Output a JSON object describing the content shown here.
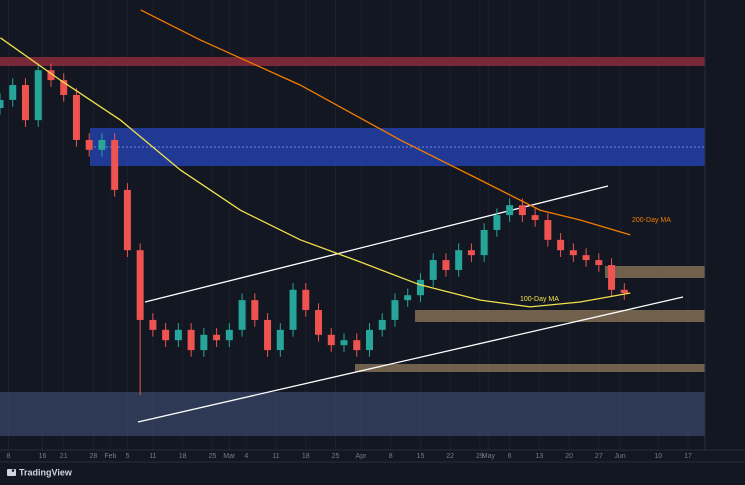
{
  "chart_data": {
    "type": "candlestick",
    "brand": "TradingView",
    "xlim": [
      5,
      171
    ],
    "ylim": [
      0,
      100
    ],
    "xticks": [
      {
        "value": 7,
        "label": "8"
      },
      {
        "value": 15,
        "label": "16"
      },
      {
        "value": 20,
        "label": "21"
      },
      {
        "value": 27,
        "label": "28"
      },
      {
        "value": 31,
        "label": "Feb"
      },
      {
        "value": 35,
        "label": "5"
      },
      {
        "value": 41,
        "label": "11"
      },
      {
        "value": 48,
        "label": "18"
      },
      {
        "value": 55,
        "label": "25"
      },
      {
        "value": 59,
        "label": "Mar"
      },
      {
        "value": 63,
        "label": "4"
      },
      {
        "value": 70,
        "label": "11"
      },
      {
        "value": 77,
        "label": "18"
      },
      {
        "value": 84,
        "label": "25"
      },
      {
        "value": 90,
        "label": "Apr"
      },
      {
        "value": 97,
        "label": "8"
      },
      {
        "value": 104,
        "label": "15"
      },
      {
        "value": 111,
        "label": "22"
      },
      {
        "value": 118,
        "label": "29"
      },
      {
        "value": 120,
        "label": "May"
      },
      {
        "value": 125,
        "label": "6"
      },
      {
        "value": 132,
        "label": "13"
      },
      {
        "value": 139,
        "label": "20"
      },
      {
        "value": 146,
        "label": "27"
      },
      {
        "value": 151,
        "label": "Jun"
      },
      {
        "value": 160,
        "label": "10"
      },
      {
        "value": 167,
        "label": "17"
      }
    ],
    "up_color": "#26a69a",
    "down_color": "#ef5350",
    "x": [
      5,
      8,
      11,
      14,
      17,
      20,
      23,
      26,
      29,
      32,
      35,
      38,
      41,
      44,
      47,
      50,
      53,
      56,
      59,
      62,
      65,
      68,
      71,
      74,
      77,
      80,
      83,
      86,
      89,
      92,
      95,
      98,
      101,
      104,
      107,
      110,
      113,
      116,
      119,
      122,
      125,
      128,
      131,
      134,
      137,
      140,
      143,
      146,
      149,
      152
    ],
    "open": [
      76.0,
      77.8,
      81.1,
      73.3,
      84.4,
      82.2,
      78.9,
      68.9,
      66.7,
      68.9,
      57.8,
      44.4,
      28.9,
      26.7,
      24.4,
      26.7,
      22.2,
      25.6,
      24.4,
      26.7,
      33.3,
      28.9,
      22.2,
      26.7,
      35.6,
      31.1,
      25.6,
      23.3,
      24.4,
      22.2,
      26.7,
      28.9,
      33.3,
      34.4,
      37.8,
      42.2,
      40.0,
      44.4,
      43.3,
      48.9,
      52.2,
      54.4,
      52.2,
      51.1,
      46.7,
      44.4,
      43.3,
      42.2,
      41.1,
      35.6
    ],
    "high": [
      79.3,
      82.6,
      82.6,
      85.9,
      85.9,
      83.7,
      80.4,
      70.4,
      70.4,
      70.4,
      59.3,
      45.9,
      30.4,
      28.2,
      28.2,
      28.2,
      27.1,
      27.1,
      28.2,
      34.8,
      34.8,
      30.4,
      28.2,
      37.1,
      37.1,
      32.6,
      27.1,
      25.9,
      25.9,
      28.2,
      30.4,
      34.8,
      35.9,
      39.3,
      43.7,
      43.7,
      45.9,
      45.9,
      50.4,
      53.7,
      55.9,
      55.9,
      53.7,
      52.6,
      48.2,
      45.9,
      44.8,
      43.7,
      42.6,
      37.1
    ],
    "low": [
      74.5,
      76.3,
      71.8,
      71.8,
      80.7,
      77.4,
      67.4,
      65.2,
      65.2,
      56.3,
      42.9,
      12.2,
      25.2,
      22.9,
      22.9,
      20.7,
      20.7,
      22.9,
      22.9,
      25.2,
      27.4,
      20.7,
      20.7,
      25.2,
      29.6,
      24.1,
      21.8,
      21.8,
      20.7,
      20.7,
      25.2,
      27.4,
      31.8,
      32.9,
      36.3,
      38.5,
      38.5,
      41.8,
      41.8,
      47.4,
      50.7,
      50.7,
      49.6,
      45.2,
      42.9,
      41.8,
      40.7,
      39.6,
      34.1,
      33.4
    ],
    "close": [
      77.8,
      81.1,
      73.3,
      84.4,
      82.2,
      78.9,
      68.9,
      66.7,
      68.9,
      57.8,
      44.4,
      28.9,
      26.7,
      24.4,
      26.7,
      22.2,
      25.6,
      24.4,
      26.7,
      33.3,
      28.9,
      22.2,
      26.7,
      35.6,
      31.1,
      25.6,
      23.3,
      24.4,
      22.2,
      26.7,
      28.9,
      33.3,
      34.4,
      37.8,
      42.2,
      40.0,
      44.4,
      43.3,
      48.9,
      52.2,
      54.4,
      52.2,
      51.1,
      46.7,
      44.4,
      43.3,
      42.2,
      41.1,
      35.6,
      34.9
    ],
    "series": [
      {
        "name": "200-Day MA",
        "color": "#f57c00",
        "x": [
          38.1,
          52.2,
          75.7,
          99.2,
          118.1,
          132.2,
          141.6,
          153.4
        ],
        "values": [
          97.8,
          91.1,
          81.1,
          68.9,
          60.0,
          53.3,
          51.1,
          47.8
        ]
      },
      {
        "name": "100-Day MA",
        "color": "#f2e14c",
        "x": [
          5.1,
          19.2,
          33.4,
          47.5,
          61.6,
          75.7,
          89.8,
          103.9,
          118.1,
          129.8,
          141.6,
          153.4
        ],
        "values": [
          91.6,
          82.2,
          73.3,
          62.2,
          53.3,
          46.7,
          41.8,
          36.7,
          33.3,
          31.8,
          32.9,
          34.9
        ]
      }
    ]
  }
}
